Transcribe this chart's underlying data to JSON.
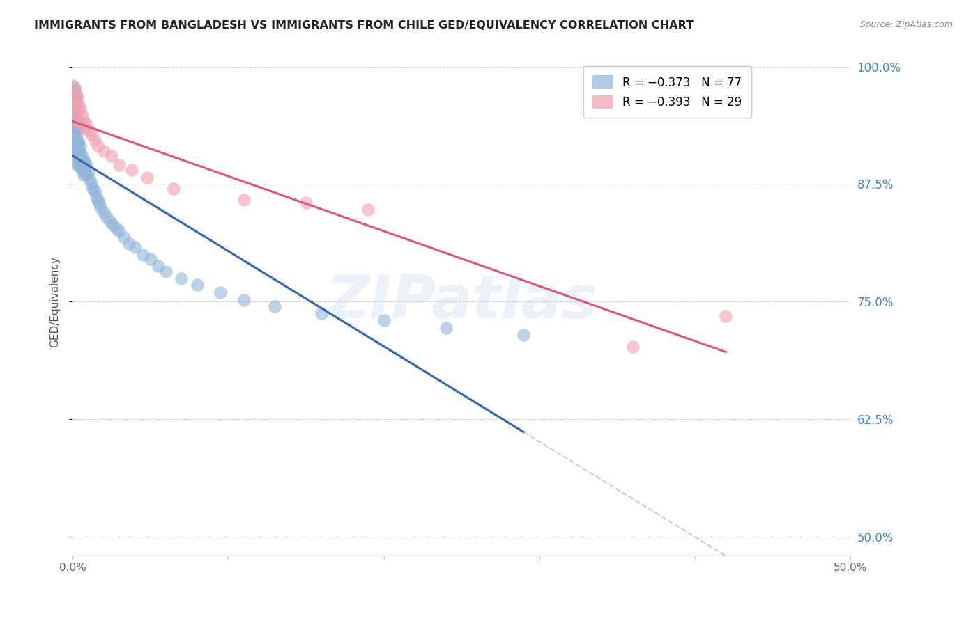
{
  "title": "IMMIGRANTS FROM BANGLADESH VS IMMIGRANTS FROM CHILE GED/EQUIVALENCY CORRELATION CHART",
  "source": "Source: ZipAtlas.com",
  "ylabel": "GED/Equivalency",
  "yticks": [
    0.5,
    0.625,
    0.75,
    0.875,
    1.0
  ],
  "ytick_labels": [
    "",
    "62.5%",
    "75.0%",
    "87.5%",
    "100.0%"
  ],
  "right_ytick_labels": [
    "50.0%",
    "62.5%",
    "75.0%",
    "87.5%",
    "100.0%"
  ],
  "blue_color": "#92b4d8",
  "pink_color": "#f0a0b0",
  "trend_blue": "#3366aa",
  "trend_pink": "#dd5577",
  "bg_color": "#ffffff",
  "grid_color": "#cccccc",
  "title_color": "#222222",
  "right_label_color": "#4488cc",
  "source_color": "#888888",
  "watermark_color": "#c5d8ee",
  "bangladesh_x": [
    0.0,
    0.001,
    0.001,
    0.001,
    0.001,
    0.001,
    0.001,
    0.001,
    0.001,
    0.002,
    0.002,
    0.002,
    0.002,
    0.002,
    0.002,
    0.002,
    0.002,
    0.002,
    0.002,
    0.002,
    0.003,
    0.003,
    0.003,
    0.003,
    0.003,
    0.003,
    0.003,
    0.004,
    0.004,
    0.004,
    0.004,
    0.004,
    0.005,
    0.005,
    0.005,
    0.005,
    0.006,
    0.006,
    0.006,
    0.007,
    0.007,
    0.007,
    0.008,
    0.008,
    0.009,
    0.009,
    0.01,
    0.011,
    0.012,
    0.013,
    0.014,
    0.015,
    0.016,
    0.017,
    0.018,
    0.02,
    0.022,
    0.024,
    0.026,
    0.028,
    0.03,
    0.033,
    0.036,
    0.04,
    0.045,
    0.05,
    0.055,
    0.06,
    0.07,
    0.08,
    0.095,
    0.11,
    0.13,
    0.16,
    0.2,
    0.24,
    0.29
  ],
  "bangladesh_y": [
    0.98,
    0.975,
    0.965,
    0.96,
    0.955,
    0.945,
    0.94,
    0.935,
    0.93,
    0.97,
    0.965,
    0.96,
    0.95,
    0.945,
    0.94,
    0.935,
    0.925,
    0.92,
    0.915,
    0.91,
    0.935,
    0.93,
    0.92,
    0.915,
    0.91,
    0.905,
    0.895,
    0.92,
    0.91,
    0.905,
    0.9,
    0.895,
    0.915,
    0.908,
    0.9,
    0.893,
    0.905,
    0.898,
    0.89,
    0.9,
    0.892,
    0.885,
    0.898,
    0.888,
    0.895,
    0.885,
    0.888,
    0.88,
    0.875,
    0.87,
    0.868,
    0.862,
    0.858,
    0.855,
    0.85,
    0.845,
    0.84,
    0.835,
    0.832,
    0.828,
    0.825,
    0.818,
    0.812,
    0.808,
    0.8,
    0.795,
    0.788,
    0.782,
    0.775,
    0.768,
    0.76,
    0.752,
    0.745,
    0.738,
    0.73,
    0.722,
    0.715
  ],
  "chile_x": [
    0.001,
    0.001,
    0.002,
    0.002,
    0.002,
    0.003,
    0.003,
    0.004,
    0.004,
    0.005,
    0.006,
    0.007,
    0.008,
    0.009,
    0.01,
    0.012,
    0.014,
    0.016,
    0.02,
    0.025,
    0.03,
    0.038,
    0.048,
    0.065,
    0.11,
    0.15,
    0.19,
    0.36,
    0.42
  ],
  "chile_y": [
    0.978,
    0.962,
    0.97,
    0.958,
    0.945,
    0.968,
    0.952,
    0.96,
    0.94,
    0.955,
    0.948,
    0.942,
    0.935,
    0.938,
    0.932,
    0.928,
    0.922,
    0.916,
    0.91,
    0.905,
    0.895,
    0.89,
    0.882,
    0.87,
    0.858,
    0.855,
    0.848,
    0.702,
    0.735
  ],
  "xlim": [
    0.0,
    0.5
  ],
  "ylim": [
    0.48,
    1.02
  ],
  "watermark_text": "ZIPatlas",
  "legend_r1_color": "#3366aa",
  "legend_r2_color": "#dd5577",
  "legend_text_color": "#333333"
}
